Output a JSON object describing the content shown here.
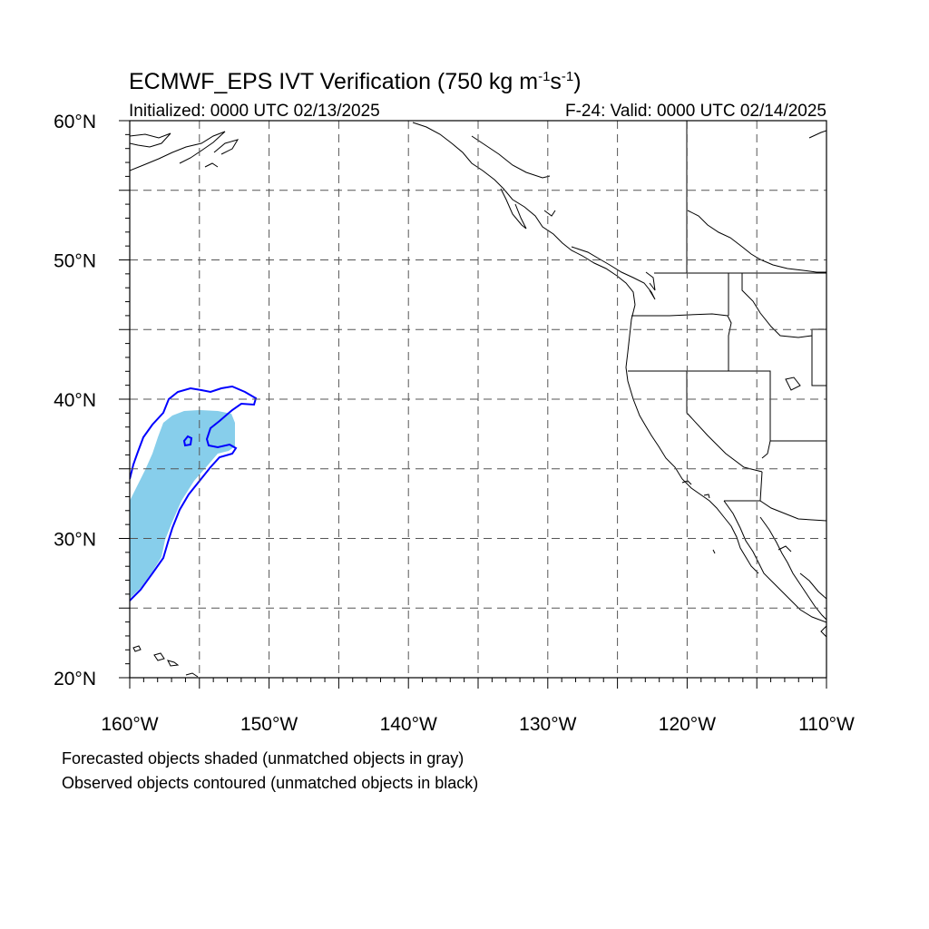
{
  "title": {
    "prefix": "ECMWF_EPS IVT Verification (750 kg m",
    "exp1": "-1",
    "mid": "s",
    "exp2": "-1",
    "suffix": ")"
  },
  "subtitle_left": "Initialized: 0000 UTC 02/13/2025",
  "subtitle_right": "F-24: Valid: 0000 UTC 02/14/2025",
  "map": {
    "lon_range": [
      -160,
      -110
    ],
    "lat_range": [
      20,
      60
    ],
    "lon_labels": [
      {
        "lon": -160,
        "text": "160°W"
      },
      {
        "lon": -150,
        "text": "150°W"
      },
      {
        "lon": -140,
        "text": "140°W"
      },
      {
        "lon": -130,
        "text": "130°W"
      },
      {
        "lon": -120,
        "text": "120°W"
      },
      {
        "lon": -110,
        "text": "110°W"
      }
    ],
    "lat_labels": [
      {
        "lat": 60,
        "text": "60°N"
      },
      {
        "lat": 50,
        "text": "50°N"
      },
      {
        "lat": 40,
        "text": "40°N"
      },
      {
        "lat": 30,
        "text": "30°N"
      },
      {
        "lat": 20,
        "text": "20°N"
      }
    ],
    "gridlines_dashed": true,
    "grid_lons": [
      -155,
      -150,
      -145,
      -140,
      -135,
      -130,
      -125,
      -120,
      -115
    ],
    "grid_lats": [
      25,
      30,
      35,
      40,
      45,
      50,
      55
    ],
    "colors": {
      "forecast_matched_fill": "#87ceeb",
      "observed_matched_contour": "#0000ff",
      "coastline": "#000000",
      "gridline": "#555555"
    }
  },
  "notes": {
    "line1": "Forecasted objects shaded (unmatched objects in gray)",
    "line2": "Observed objects contoured (unmatched objects in black)"
  }
}
